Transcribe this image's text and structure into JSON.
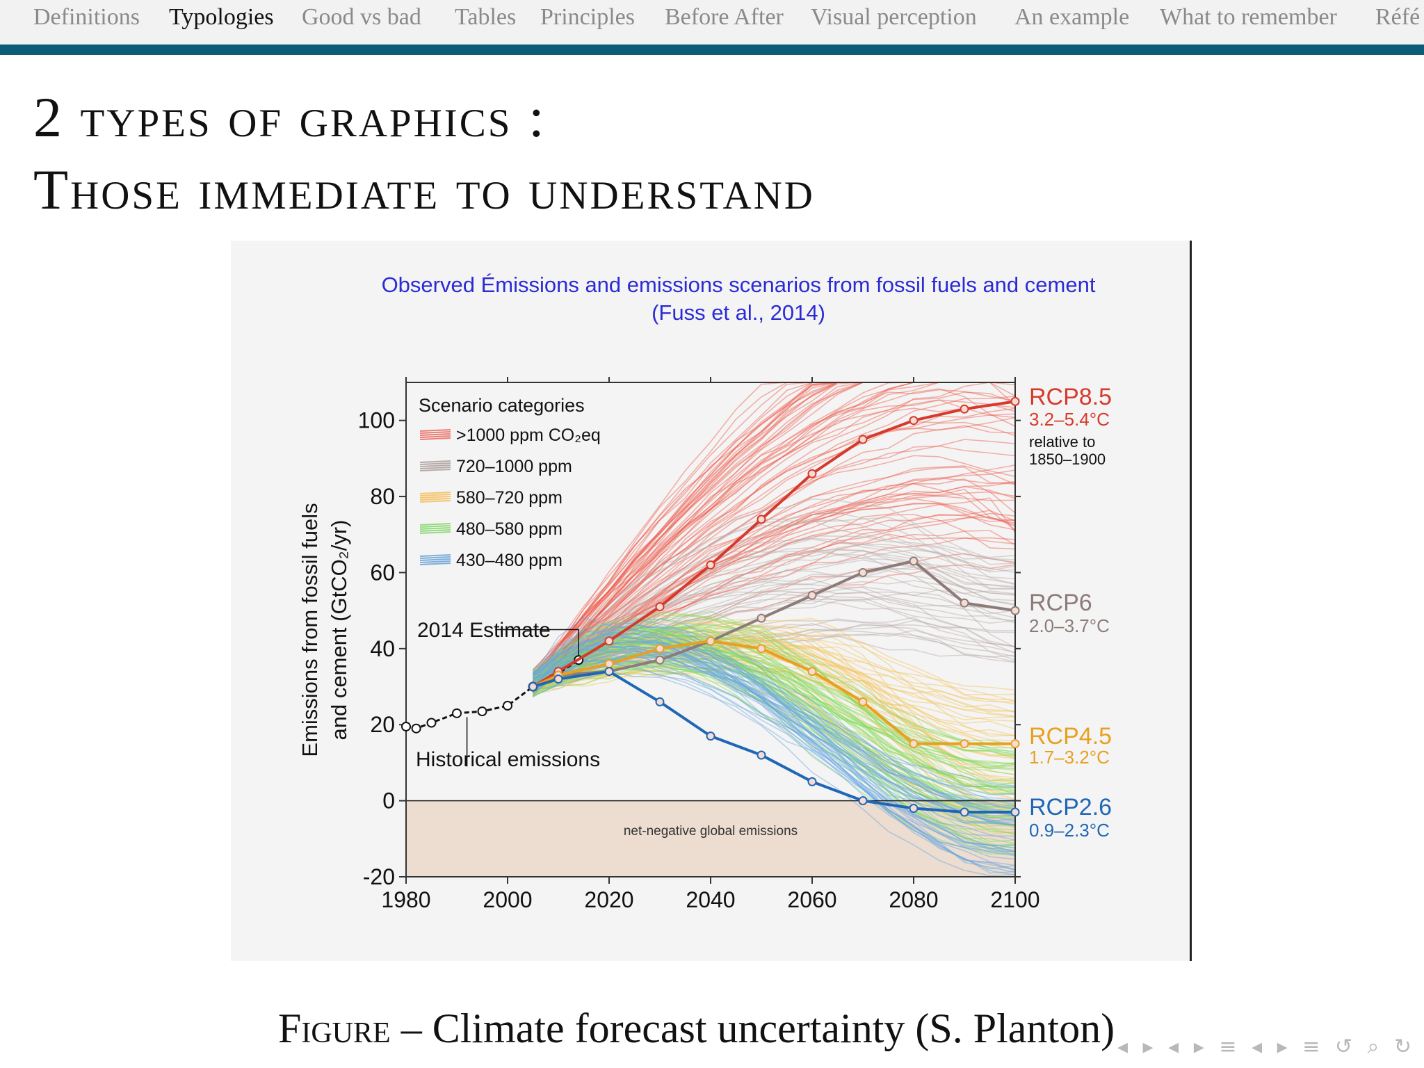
{
  "nav": {
    "items": [
      {
        "label": "Definitions"
      },
      {
        "label": "Typologies"
      },
      {
        "label": "Good vs bad"
      },
      {
        "label": "Tables"
      },
      {
        "label": "Principles"
      },
      {
        "label": "Before After"
      },
      {
        "label": "Visual perception"
      },
      {
        "label": "An example"
      },
      {
        "label": "What to remember"
      },
      {
        "label": "Réfé"
      }
    ],
    "active_index": 1,
    "accent": "#0d5c7a"
  },
  "slide": {
    "title_line1": "2 types of graphics :",
    "title_line2": "Those immediate to understand"
  },
  "caption": {
    "figure_word": "Figure",
    "text": " – Climate forecast uncertainty (S. Planton)"
  },
  "beamer_nav": {
    "glyphs": "◂ ▸ ◂ ▸ ≡ ◂ ▸ ≡ ↺ ⌕ ↻"
  },
  "chart_data": {
    "type": "line",
    "title": "Observed Émissions and emissions scenarios from fossil fuels and cement",
    "subtitle": "(Fuss et al., 2014)",
    "ylabel_line1": "Emissions from fossil fuels",
    "ylabel_line2": "and cement (GtCO₂/yr)",
    "xlim": [
      1980,
      2100
    ],
    "ylim": [
      -20,
      110
    ],
    "x_ticks": [
      1980,
      2000,
      2020,
      2040,
      2060,
      2080,
      2100
    ],
    "y_ticks": [
      -20,
      0,
      20,
      40,
      60,
      80,
      100
    ],
    "legend": {
      "title": "Scenario categories",
      "position": "top-left",
      "entries": [
        {
          "label": ">1000 ppm CO₂eq",
          "color": "#e8483c"
        },
        {
          "label": "720–1000 ppm",
          "color": "#9b8a86"
        },
        {
          "label": "580–720 ppm",
          "color": "#f2b035"
        },
        {
          "label": "480–580 ppm",
          "color": "#6ad04a"
        },
        {
          "label": "430–480 ppm",
          "color": "#4a8fd0"
        }
      ]
    },
    "annotations": {
      "estimate": "2014 Estimate",
      "historical": "Historical emissions",
      "negative_region": "net-negative global emissions"
    },
    "historical": {
      "name": "Historical emissions",
      "x": [
        1980,
        1982,
        1985,
        1990,
        1995,
        2000,
        2005,
        2010,
        2014
      ],
      "y": [
        19.5,
        19,
        20.5,
        23,
        23.5,
        25,
        30,
        33.5,
        37
      ]
    },
    "series": [
      {
        "name": "RCP8.5",
        "range": "3.2–5.4°C",
        "note_line1": "relative to",
        "note_line2": "1850–1900",
        "color": "#d63a2c",
        "x": [
          2005,
          2010,
          2020,
          2030,
          2040,
          2050,
          2060,
          2070,
          2080,
          2090,
          2100
        ],
        "y": [
          30,
          34,
          42,
          51,
          62,
          74,
          86,
          95,
          100,
          103,
          105
        ]
      },
      {
        "name": "RCP6",
        "range": "2.0–3.7°C",
        "color": "#8c7b78",
        "x": [
          2005,
          2010,
          2020,
          2030,
          2040,
          2050,
          2060,
          2070,
          2080,
          2090,
          2100
        ],
        "y": [
          30,
          33,
          34,
          37,
          42,
          48,
          54,
          60,
          63,
          52,
          50
        ]
      },
      {
        "name": "RCP4.5",
        "range": "1.7–3.2°C",
        "color": "#e8a020",
        "x": [
          2005,
          2010,
          2020,
          2030,
          2040,
          2050,
          2060,
          2070,
          2080,
          2090,
          2100
        ],
        "y": [
          30,
          33,
          36,
          40,
          42,
          40,
          34,
          26,
          15,
          15,
          15
        ]
      },
      {
        "name": "RCP2.6",
        "range": "0.9–2.3°C",
        "color": "#1f67b5",
        "x": [
          2005,
          2010,
          2020,
          2030,
          2040,
          2050,
          2060,
          2070,
          2080,
          2090,
          2100
        ],
        "y": [
          30,
          32,
          34,
          26,
          17,
          12,
          5,
          0,
          -2,
          -3,
          -3
        ]
      }
    ],
    "grid": false
  }
}
